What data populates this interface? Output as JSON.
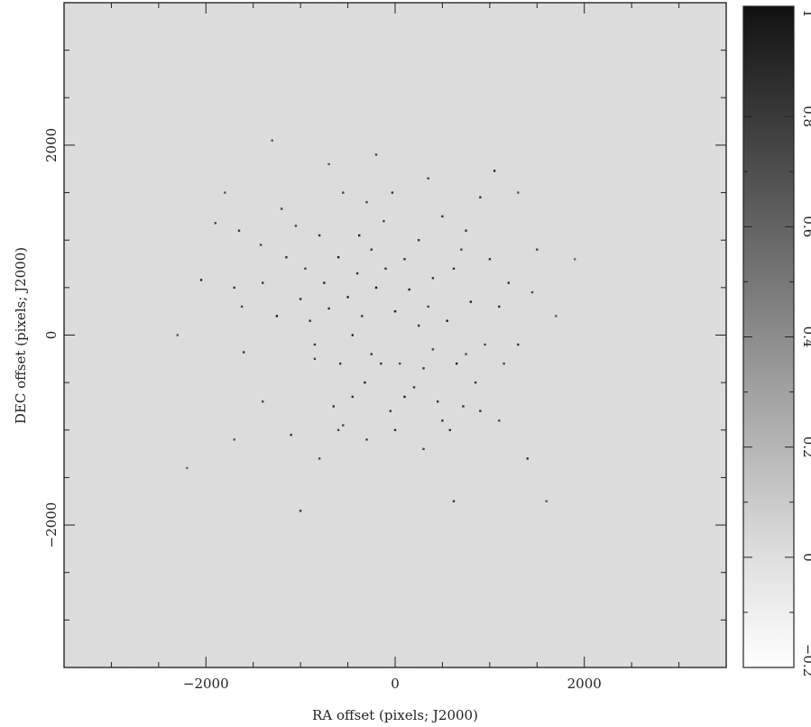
{
  "chart_data": {
    "type": "scatter",
    "title": "",
    "xlabel": "RA offset (pixels; J2000)",
    "ylabel": "DEC offset (pixels; J2000)",
    "xlim": [
      -3500,
      3500
    ],
    "ylim": [
      -3500,
      3500
    ],
    "x_ticks": [
      -2000,
      0,
      2000
    ],
    "x_tick_labels": [
      "−2000",
      "0",
      "2000"
    ],
    "y_ticks": [
      -2000,
      0,
      2000
    ],
    "y_tick_labels": [
      "−2000",
      "0",
      "2000"
    ],
    "grid": false,
    "background_value": 0.0,
    "colorbar": {
      "label": "",
      "min": -0.2,
      "max": 1.0,
      "ticks": [
        -0.2,
        0,
        0.2,
        0.4,
        0.6,
        0.8,
        1
      ],
      "tick_labels": [
        "−0.2",
        "0",
        "0.2",
        "0.4",
        "0.6",
        "0.8",
        "1"
      ],
      "colormap": "grayscale (white = low, black = high)"
    },
    "points": [
      {
        "x": -2050,
        "y": 580,
        "v": 0.9
      },
      {
        "x": -1900,
        "y": 1180,
        "v": 0.7
      },
      {
        "x": -1700,
        "y": 500,
        "v": 0.8
      },
      {
        "x": -1600,
        "y": -180,
        "v": 0.8
      },
      {
        "x": -1620,
        "y": 300,
        "v": 0.7
      },
      {
        "x": -1650,
        "y": 1100,
        "v": 0.8
      },
      {
        "x": -1420,
        "y": 950,
        "v": 0.7
      },
      {
        "x": -1400,
        "y": 550,
        "v": 0.8
      },
      {
        "x": -1250,
        "y": 200,
        "v": 0.95
      },
      {
        "x": -1200,
        "y": 1330,
        "v": 0.7
      },
      {
        "x": -1150,
        "y": 820,
        "v": 0.8
      },
      {
        "x": -1050,
        "y": 1150,
        "v": 0.7
      },
      {
        "x": -1000,
        "y": 380,
        "v": 0.8
      },
      {
        "x": -950,
        "y": 700,
        "v": 0.7
      },
      {
        "x": -900,
        "y": 150,
        "v": 0.8
      },
      {
        "x": -850,
        "y": -250,
        "v": 0.7
      },
      {
        "x": -800,
        "y": 1050,
        "v": 0.8
      },
      {
        "x": -750,
        "y": 550,
        "v": 0.9
      },
      {
        "x": -700,
        "y": 280,
        "v": 0.8
      },
      {
        "x": -650,
        "y": -750,
        "v": 0.8
      },
      {
        "x": -600,
        "y": 820,
        "v": 0.9
      },
      {
        "x": -580,
        "y": -300,
        "v": 0.8
      },
      {
        "x": -550,
        "y": 1500,
        "v": 0.7
      },
      {
        "x": -500,
        "y": 400,
        "v": 0.9
      },
      {
        "x": -450,
        "y": -650,
        "v": 0.8
      },
      {
        "x": -400,
        "y": 650,
        "v": 0.8
      },
      {
        "x": -380,
        "y": 1050,
        "v": 0.9
      },
      {
        "x": -350,
        "y": 200,
        "v": 0.8
      },
      {
        "x": -320,
        "y": -500,
        "v": 0.9
      },
      {
        "x": -300,
        "y": 1400,
        "v": 0.7
      },
      {
        "x": -250,
        "y": 900,
        "v": 0.8
      },
      {
        "x": -200,
        "y": 500,
        "v": 0.95
      },
      {
        "x": -150,
        "y": -300,
        "v": 0.8
      },
      {
        "x": -120,
        "y": 1200,
        "v": 0.7
      },
      {
        "x": -100,
        "y": 700,
        "v": 0.8
      },
      {
        "x": -50,
        "y": -800,
        "v": 0.8
      },
      {
        "x": -30,
        "y": 1500,
        "v": 0.8
      },
      {
        "x": 0,
        "y": 250,
        "v": 0.9
      },
      {
        "x": 50,
        "y": -300,
        "v": 0.7
      },
      {
        "x": 100,
        "y": 800,
        "v": 0.8
      },
      {
        "x": 150,
        "y": 480,
        "v": 0.9
      },
      {
        "x": 200,
        "y": -550,
        "v": 0.8
      },
      {
        "x": 250,
        "y": 1000,
        "v": 0.8
      },
      {
        "x": 300,
        "y": -350,
        "v": 0.8
      },
      {
        "x": 350,
        "y": 300,
        "v": 0.7
      },
      {
        "x": 400,
        "y": 600,
        "v": 0.8
      },
      {
        "x": 450,
        "y": -700,
        "v": 0.8
      },
      {
        "x": 500,
        "y": 1250,
        "v": 0.8
      },
      {
        "x": 550,
        "y": 150,
        "v": 0.9
      },
      {
        "x": 580,
        "y": -1000,
        "v": 0.8
      },
      {
        "x": 620,
        "y": 700,
        "v": 0.8
      },
      {
        "x": 650,
        "y": -300,
        "v": 0.9
      },
      {
        "x": 700,
        "y": 900,
        "v": 0.7
      },
      {
        "x": 720,
        "y": -750,
        "v": 0.8
      },
      {
        "x": 750,
        "y": 1100,
        "v": 0.8
      },
      {
        "x": 800,
        "y": 350,
        "v": 0.9
      },
      {
        "x": 850,
        "y": -500,
        "v": 0.8
      },
      {
        "x": 900,
        "y": 1450,
        "v": 0.8
      },
      {
        "x": 950,
        "y": -100,
        "v": 0.7
      },
      {
        "x": 1000,
        "y": 800,
        "v": 0.8
      },
      {
        "x": 1050,
        "y": 1730,
        "v": 0.9
      },
      {
        "x": 1100,
        "y": 300,
        "v": 0.8
      },
      {
        "x": 1150,
        "y": -300,
        "v": 0.7
      },
      {
        "x": 1200,
        "y": 550,
        "v": 0.8
      },
      {
        "x": 1300,
        "y": -100,
        "v": 0.8
      },
      {
        "x": 1400,
        "y": -1300,
        "v": 0.8
      },
      {
        "x": 1450,
        "y": 450,
        "v": 0.7
      },
      {
        "x": 1500,
        "y": 900,
        "v": 0.7
      },
      {
        "x": 1600,
        "y": -1750,
        "v": 0.6
      },
      {
        "x": 620,
        "y": -1750,
        "v": 0.8
      },
      {
        "x": -1000,
        "y": -1850,
        "v": 0.8
      },
      {
        "x": -1100,
        "y": -1050,
        "v": 0.8
      },
      {
        "x": -800,
        "y": -1300,
        "v": 0.7
      },
      {
        "x": -600,
        "y": -1000,
        "v": 0.7
      },
      {
        "x": -300,
        "y": -1100,
        "v": 0.7
      },
      {
        "x": 0,
        "y": -1000,
        "v": 0.8
      },
      {
        "x": 300,
        "y": -1200,
        "v": 0.7
      },
      {
        "x": 500,
        "y": -900,
        "v": 0.8
      },
      {
        "x": 1100,
        "y": -900,
        "v": 0.7
      },
      {
        "x": -1400,
        "y": -700,
        "v": 0.7
      },
      {
        "x": -1700,
        "y": -1100,
        "v": 0.6
      },
      {
        "x": -2300,
        "y": 0,
        "v": 0.6
      },
      {
        "x": -2200,
        "y": -1400,
        "v": 0.5
      },
      {
        "x": 1900,
        "y": 800,
        "v": 0.5
      },
      {
        "x": 1700,
        "y": 200,
        "v": 0.6
      },
      {
        "x": -1300,
        "y": 2050,
        "v": 0.6
      },
      {
        "x": -700,
        "y": 1800,
        "v": 0.6
      },
      {
        "x": -200,
        "y": 1900,
        "v": 0.7
      },
      {
        "x": 350,
        "y": 1650,
        "v": 0.7
      },
      {
        "x": -1800,
        "y": 1500,
        "v": 0.6
      },
      {
        "x": 1300,
        "y": 1500,
        "v": 0.6
      },
      {
        "x": -450,
        "y": 0,
        "v": 0.9
      },
      {
        "x": -850,
        "y": -100,
        "v": 0.8
      },
      {
        "x": 250,
        "y": 100,
        "v": 0.8
      },
      {
        "x": 750,
        "y": -200,
        "v": 0.7
      },
      {
        "x": -550,
        "y": -950,
        "v": 0.7
      },
      {
        "x": 100,
        "y": -650,
        "v": 0.9
      },
      {
        "x": 400,
        "y": -150,
        "v": 0.7
      },
      {
        "x": -250,
        "y": -200,
        "v": 0.8
      },
      {
        "x": 900,
        "y": -800,
        "v": 0.8
      }
    ]
  }
}
